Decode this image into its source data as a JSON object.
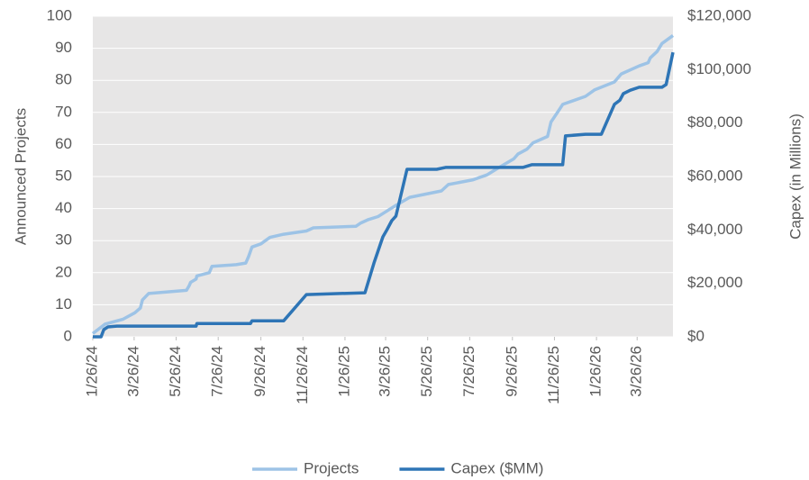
{
  "chart_data": {
    "type": "line",
    "y_label": "Announced Projects",
    "y2_label": "Capex (in Millions)",
    "xlim": [
      "1/26/24",
      "5/17/26"
    ],
    "xticks": [
      "1/26/24",
      "3/26/24",
      "5/26/24",
      "7/26/24",
      "9/26/24",
      "11/26/24",
      "1/26/25",
      "3/26/25",
      "5/26/25",
      "7/26/25",
      "9/26/25",
      "11/26/25",
      "1/26/26",
      "3/26/26"
    ],
    "ylim": [
      0,
      100
    ],
    "yticks": [
      0,
      10,
      20,
      30,
      40,
      50,
      60,
      70,
      80,
      90,
      100
    ],
    "y2lim": [
      0,
      120000
    ],
    "y2ticks": [
      {
        "value": 0,
        "label": "$0"
      },
      {
        "value": 20000,
        "label": "$20,000"
      },
      {
        "value": 40000,
        "label": "$40,000"
      },
      {
        "value": 60000,
        "label": "$60,000"
      },
      {
        "value": 80000,
        "label": "$80,000"
      },
      {
        "value": 100000,
        "label": "$100,000"
      },
      {
        "value": 120000,
        "label": "$120,000"
      }
    ],
    "grid": true,
    "legend": "bottom",
    "series": [
      {
        "name": "Projects",
        "color": "#9dc3e6",
        "axis": "y",
        "x": [
          "1/26/24",
          "2/13/24",
          "3/10/24",
          "3/27/24",
          "4/4/24",
          "4/7/24",
          "4/16/24",
          "6/10/24",
          "6/14/24",
          "6/16/24",
          "6/24/24",
          "6/25/24",
          "7/13/24",
          "7/17/24",
          "8/21/24",
          "9/4/24",
          "9/8/24",
          "9/13/24",
          "9/26/24",
          "10/9/24",
          "10/29/24",
          "12/1/24",
          "12/11/24",
          "2/11/25",
          "2/18/25",
          "2/28/25",
          "3/15/25",
          "3/26/25",
          "4/10/25",
          "4/30/25",
          "6/15/25",
          "6/25/25",
          "7/31/25",
          "8/20/25",
          "9/4/25",
          "9/28/25",
          "10/4/25",
          "10/17/25",
          "10/26/25",
          "11/16/25",
          "11/21/25",
          "12/2/25",
          "12/8/25",
          "1/10/26",
          "1/23/26",
          "2/21/26",
          "3/3/26",
          "3/29/26",
          "4/11/26",
          "4/14/26",
          "4/24/26",
          "5/1/26",
          "5/17/26"
        ],
        "values": [
          1,
          4,
          5.5,
          7.5,
          9,
          11.5,
          13.5,
          14.5,
          16,
          17,
          18,
          19,
          20,
          22,
          22.5,
          23,
          25,
          28,
          29,
          31,
          32,
          33,
          34,
          34.5,
          35.5,
          36.5,
          37.5,
          39,
          41,
          43.5,
          45.5,
          47.5,
          49,
          50.5,
          52.5,
          55.5,
          57,
          58.5,
          60.5,
          62.5,
          67,
          70.5,
          72.5,
          75,
          77,
          79.5,
          82,
          84.5,
          85.5,
          87,
          89,
          91.5,
          94
        ]
      },
      {
        "name": "Capex ($MM)",
        "color": "#2e75b6",
        "axis": "y2",
        "x": [
          "1/26/24",
          "2/7/24",
          "2/11/24",
          "2/17/24",
          "3/1/24",
          "6/24/24",
          "6/25/24",
          "9/11/24",
          "9/13/24",
          "10/29/24",
          "12/1/24",
          "2/24/25",
          "3/9/25",
          "3/22/25",
          "3/28/25",
          "4/4/25",
          "4/10/25",
          "4/26/25",
          "6/8/25",
          "6/21/25",
          "10/11/25",
          "10/24/25",
          "12/8/25",
          "12/12/25",
          "1/10/26",
          "2/2/26",
          "2/21/26",
          "3/1/26",
          "3/6/26",
          "3/16/26",
          "3/29/26",
          "5/1/26",
          "5/7/26",
          "5/17/26"
        ],
        "values": [
          0,
          0,
          2700,
          3700,
          4000,
          4000,
          5000,
          5000,
          6000,
          6000,
          15800,
          16500,
          27600,
          37400,
          40100,
          43500,
          45200,
          62700,
          62700,
          63400,
          63400,
          64400,
          64400,
          75200,
          75800,
          75800,
          87000,
          88600,
          91000,
          92300,
          93400,
          93400,
          94400,
          106500
        ]
      }
    ]
  }
}
